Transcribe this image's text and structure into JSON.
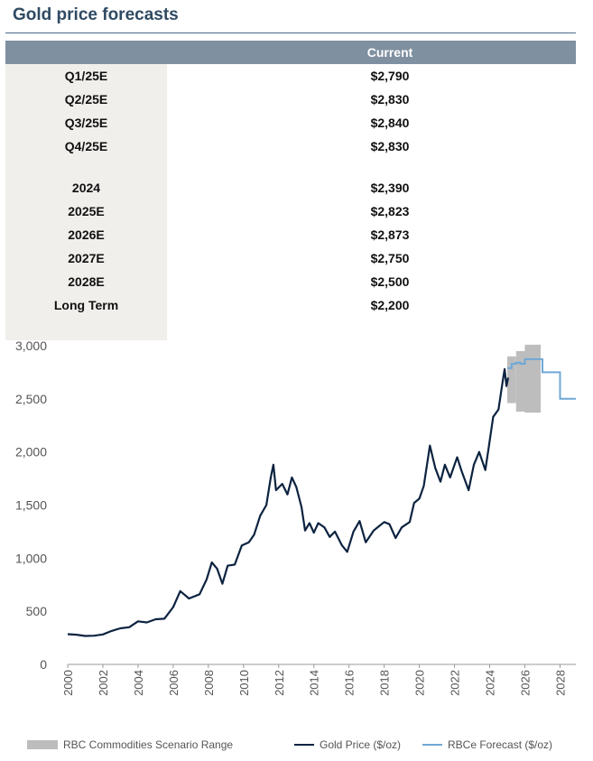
{
  "title": "Gold price forecasts",
  "table": {
    "header": "Current",
    "quarterly": [
      {
        "label": "Q1/25E",
        "value": "$2,790"
      },
      {
        "label": "Q2/25E",
        "value": "$2,830"
      },
      {
        "label": "Q3/25E",
        "value": "$2,840"
      },
      {
        "label": "Q4/25E",
        "value": "$2,830"
      }
    ],
    "annual": [
      {
        "label": "2024",
        "value": "$2,390"
      },
      {
        "label": "2025E",
        "value": "$2,823"
      },
      {
        "label": "2026E",
        "value": "$2,873"
      },
      {
        "label": "2027E",
        "value": "$2,750"
      },
      {
        "label": "2028E",
        "value": "$2,500"
      },
      {
        "label": "Long Term",
        "value": "$2,200"
      }
    ]
  },
  "chart_data": {
    "type": "line",
    "ylim": [
      0,
      3000
    ],
    "yticks": [
      "0",
      "500",
      "1,000",
      "1,500",
      "2,000",
      "2,500",
      "3,000"
    ],
    "xlim": [
      2000,
      2028.9
    ],
    "xticks": [
      "2000",
      "2002",
      "2004",
      "2006",
      "2008",
      "2010",
      "2012",
      "2014",
      "2016",
      "2018",
      "2020",
      "2022",
      "2024",
      "2026",
      "2028"
    ],
    "series": [
      {
        "name": "Gold Price ($/oz)",
        "color": "#0c2340",
        "points": [
          [
            2000.0,
            285
          ],
          [
            2000.5,
            280
          ],
          [
            2001.0,
            268
          ],
          [
            2001.5,
            270
          ],
          [
            2002.0,
            282
          ],
          [
            2002.5,
            315
          ],
          [
            2003.0,
            340
          ],
          [
            2003.5,
            350
          ],
          [
            2004.0,
            405
          ],
          [
            2004.5,
            395
          ],
          [
            2005.0,
            425
          ],
          [
            2005.5,
            430
          ],
          [
            2006.0,
            540
          ],
          [
            2006.4,
            690
          ],
          [
            2006.9,
            620
          ],
          [
            2007.5,
            660
          ],
          [
            2007.9,
            800
          ],
          [
            2008.2,
            960
          ],
          [
            2008.5,
            900
          ],
          [
            2008.8,
            760
          ],
          [
            2009.1,
            930
          ],
          [
            2009.5,
            940
          ],
          [
            2009.9,
            1120
          ],
          [
            2010.3,
            1150
          ],
          [
            2010.6,
            1220
          ],
          [
            2010.95,
            1400
          ],
          [
            2011.3,
            1500
          ],
          [
            2011.55,
            1760
          ],
          [
            2011.7,
            1880
          ],
          [
            2011.85,
            1640
          ],
          [
            2012.2,
            1700
          ],
          [
            2012.5,
            1600
          ],
          [
            2012.75,
            1760
          ],
          [
            2013.0,
            1670
          ],
          [
            2013.3,
            1480
          ],
          [
            2013.5,
            1260
          ],
          [
            2013.75,
            1330
          ],
          [
            2014.0,
            1240
          ],
          [
            2014.25,
            1330
          ],
          [
            2014.6,
            1290
          ],
          [
            2014.9,
            1200
          ],
          [
            2015.2,
            1250
          ],
          [
            2015.6,
            1120
          ],
          [
            2015.9,
            1060
          ],
          [
            2016.25,
            1250
          ],
          [
            2016.6,
            1350
          ],
          [
            2016.95,
            1150
          ],
          [
            2017.4,
            1260
          ],
          [
            2017.7,
            1300
          ],
          [
            2018.0,
            1340
          ],
          [
            2018.3,
            1320
          ],
          [
            2018.65,
            1190
          ],
          [
            2019.0,
            1290
          ],
          [
            2019.45,
            1340
          ],
          [
            2019.7,
            1520
          ],
          [
            2020.0,
            1560
          ],
          [
            2020.25,
            1680
          ],
          [
            2020.6,
            2060
          ],
          [
            2020.9,
            1850
          ],
          [
            2021.2,
            1720
          ],
          [
            2021.45,
            1880
          ],
          [
            2021.75,
            1760
          ],
          [
            2022.15,
            1950
          ],
          [
            2022.4,
            1820
          ],
          [
            2022.8,
            1640
          ],
          [
            2023.1,
            1880
          ],
          [
            2023.4,
            2000
          ],
          [
            2023.75,
            1830
          ],
          [
            2023.95,
            2050
          ],
          [
            2024.2,
            2330
          ],
          [
            2024.5,
            2400
          ],
          [
            2024.75,
            2680
          ],
          [
            2024.85,
            2780
          ],
          [
            2024.95,
            2620
          ],
          [
            2025.05,
            2700
          ]
        ]
      },
      {
        "name": "RBCe Forecast ($/oz)",
        "color": "#6fa8d6",
        "steps": [
          [
            2025.0,
            2790
          ],
          [
            2025.25,
            2830
          ],
          [
            2025.5,
            2840
          ],
          [
            2025.75,
            2830
          ],
          [
            2026.0,
            2873
          ],
          [
            2027.0,
            2750
          ],
          [
            2028.0,
            2500
          ],
          [
            2028.9,
            2500
          ]
        ]
      }
    ],
    "range_band": {
      "name": "RBC Commodities Scenario Range",
      "color": "#bdbdbd",
      "segments": [
        {
          "x0": 2025.0,
          "x1": 2025.5,
          "low": 2460,
          "high": 2900
        },
        {
          "x0": 2025.5,
          "x1": 2026.0,
          "low": 2380,
          "high": 2950
        },
        {
          "x0": 2026.0,
          "x1": 2026.9,
          "low": 2370,
          "high": 3010
        }
      ]
    },
    "legend": [
      "RBC Commodities Scenario Range",
      "Gold Price ($/oz)",
      "RBCe Forecast ($/oz)"
    ]
  }
}
